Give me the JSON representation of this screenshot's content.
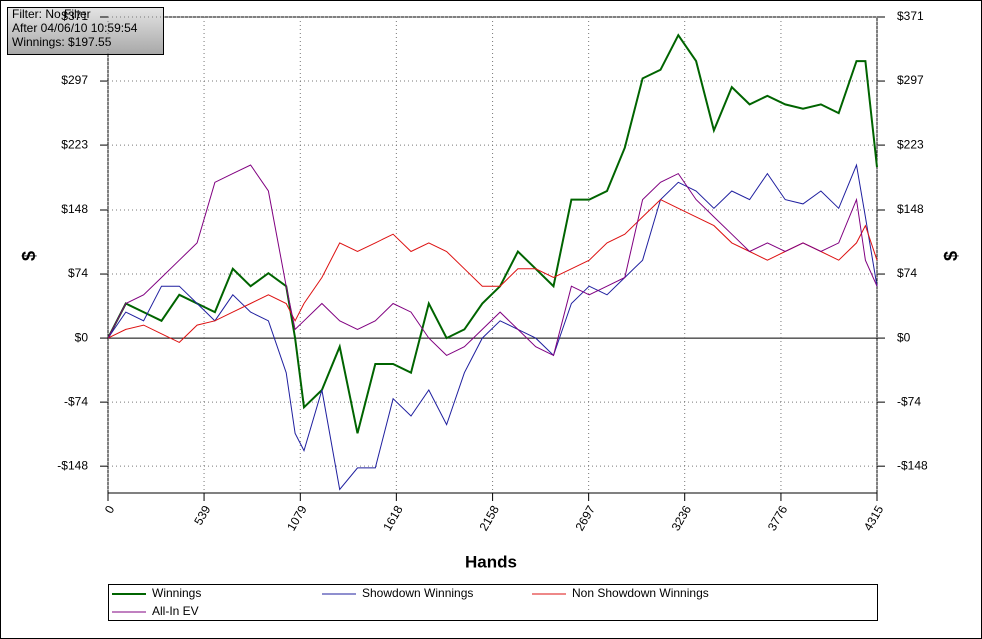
{
  "chart_data": {
    "type": "line",
    "annotations": [
      "Filter: No Filter",
      "After 04/06/10 10:59:54",
      "Winnings: $197.55"
    ],
    "xlabel": "Hands",
    "ylabel": "$",
    "x": [
      0,
      100,
      200,
      300,
      400,
      500,
      600,
      700,
      800,
      900,
      1000,
      1050,
      1100,
      1200,
      1300,
      1400,
      1500,
      1600,
      1700,
      1800,
      1900,
      2000,
      2100,
      2200,
      2300,
      2400,
      2500,
      2600,
      2700,
      2800,
      2900,
      3000,
      3100,
      3200,
      3300,
      3400,
      3500,
      3600,
      3700,
      3800,
      3900,
      4000,
      4100,
      4200,
      4250,
      4315
    ],
    "series": [
      {
        "name": "Winnings",
        "color": "#006400",
        "values": [
          0,
          40,
          30,
          20,
          50,
          40,
          30,
          80,
          60,
          75,
          60,
          0,
          -80,
          -60,
          -10,
          -110,
          -30,
          -30,
          -40,
          40,
          0,
          10,
          40,
          60,
          100,
          80,
          60,
          160,
          160,
          170,
          220,
          300,
          310,
          350,
          320,
          240,
          290,
          270,
          280,
          270,
          265,
          270,
          260,
          320,
          320,
          197.55
        ]
      },
      {
        "name": "Showdown Winnings",
        "color": "#1f1f9f",
        "values": [
          0,
          30,
          20,
          60,
          60,
          40,
          20,
          50,
          30,
          20,
          -40,
          -110,
          -130,
          -60,
          -175,
          -150,
          -150,
          -70,
          -90,
          -60,
          -100,
          -40,
          0,
          20,
          10,
          0,
          -20,
          40,
          60,
          50,
          70,
          90,
          160,
          180,
          170,
          150,
          170,
          160,
          190,
          160,
          155,
          170,
          150,
          200,
          140,
          60
        ]
      },
      {
        "name": "Non Showdown Winnings",
        "color": "#dd1111",
        "values": [
          0,
          10,
          15,
          5,
          -5,
          15,
          20,
          30,
          40,
          50,
          40,
          20,
          40,
          70,
          110,
          100,
          110,
          120,
          100,
          110,
          100,
          80,
          60,
          60,
          80,
          80,
          70,
          80,
          90,
          110,
          120,
          140,
          160,
          150,
          140,
          130,
          110,
          100,
          90,
          100,
          110,
          100,
          90,
          110,
          130,
          90
        ]
      },
      {
        "name": "All-In EV",
        "color": "#800080",
        "values": [
          0,
          40,
          50,
          70,
          90,
          110,
          180,
          190,
          200,
          170,
          60,
          10,
          20,
          40,
          20,
          10,
          20,
          40,
          30,
          0,
          -20,
          -10,
          10,
          30,
          10,
          -10,
          -20,
          60,
          50,
          60,
          70,
          160,
          180,
          190,
          160,
          140,
          120,
          100,
          110,
          100,
          110,
          100,
          110,
          160,
          90,
          60
        ]
      }
    ],
    "xlim": [
      0,
      4315
    ],
    "xticks": [
      0,
      539,
      1079,
      1618,
      2158,
      2697,
      3236,
      3776,
      4315
    ],
    "ylim": [
      -179,
      371
    ],
    "yticks": [
      {
        "value": -148,
        "label": "-$148"
      },
      {
        "value": -74,
        "label": "-$74"
      },
      {
        "value": 0,
        "label": "$0"
      },
      {
        "value": 74,
        "label": "$74"
      },
      {
        "value": 148,
        "label": "$148"
      },
      {
        "value": 223,
        "label": "$223"
      },
      {
        "value": 297,
        "label": "$297"
      },
      {
        "value": 371,
        "label": "$371"
      }
    ],
    "grid": true
  }
}
